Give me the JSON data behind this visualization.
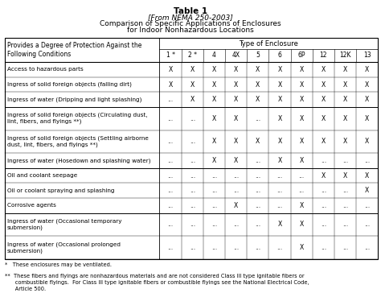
{
  "title_line1": "Table 1",
  "title_line2": "[From NEMA 250-2003]",
  "title_line3": "Comparison of Specific Applications of Enclosures",
  "title_line4": "for Indoor Nonhazardous Locations",
  "col_header": [
    "1 *",
    "2 *",
    "4",
    "4X",
    "5",
    "6",
    "6P",
    "12",
    "12K",
    "13"
  ],
  "row_labels": [
    "Access to hazardous parts",
    "Ingress of solid foreign objects (falling dirt)",
    "Ingress of water (Dripping and light splashing)",
    "Ingress of solid foreign objects (Circulating dust,\nlint, fibers, and flyings **)",
    "Ingress of solid foreign objects (Settling airborne\ndust, lint, fibers, and flyings **)",
    "Ingress of water (Hosedown and splashing water)",
    "Oil and coolant seepage",
    "Oil or coolant spraying and splashing",
    "Corrosive agents",
    "Ingress of water (Occasional temporary\nsubmersion)",
    "Ingress of water (Occasional prolonged\nsubmersion)"
  ],
  "table_data": [
    [
      "X",
      "X",
      "X",
      "X",
      "X",
      "X",
      "X",
      "X",
      "X",
      "X"
    ],
    [
      "X",
      "X",
      "X",
      "X",
      "X",
      "X",
      "X",
      "X",
      "X",
      "X"
    ],
    [
      "...",
      "X",
      "X",
      "X",
      "X",
      "X",
      "X",
      "X",
      "X",
      "X"
    ],
    [
      "...",
      "...",
      "X",
      "X",
      "...",
      "X",
      "X",
      "X",
      "X",
      "X"
    ],
    [
      "...",
      "...",
      "X",
      "X",
      "X",
      "X",
      "X",
      "X",
      "X",
      "X"
    ],
    [
      "...",
      "...",
      "X",
      "X",
      "...",
      "X",
      "X",
      "...",
      "...",
      "..."
    ],
    [
      "...",
      "...",
      "...",
      "...",
      "...",
      "...",
      "...",
      "X",
      "X",
      "X"
    ],
    [
      "...",
      "...",
      "...",
      "...",
      "...",
      "...",
      "...",
      "...",
      "...",
      "X"
    ],
    [
      "...",
      "...",
      "...",
      "X",
      "...",
      "...",
      "X",
      "...",
      "...",
      "..."
    ],
    [
      "...",
      "...",
      "...",
      "...",
      "...",
      "X",
      "X",
      "...",
      "...",
      "..."
    ],
    [
      "...",
      "...",
      "...",
      "...",
      "...",
      "...",
      "X",
      "...",
      "...",
      "..."
    ]
  ],
  "footnote1": "*   These enclosures may be ventilated.",
  "footnote2": "**  These fibers and flyings are nonhazardous materials and are not considered Class III type ignitable fibers or\n      combustible flyings.  For Class III type ignitable fibers or combustible flyings see the National Electrical Code,\n      Article 500.",
  "group_borders": [
    2,
    5,
    8
  ],
  "bg_color": "#ffffff",
  "text_color": "#000000",
  "title_fontsize": 7.5,
  "subtitle_fontsize": 6.5,
  "header_fontsize": 6.0,
  "cell_fontsize": 5.5,
  "label_fontsize": 5.2,
  "footnote_fontsize": 4.8
}
